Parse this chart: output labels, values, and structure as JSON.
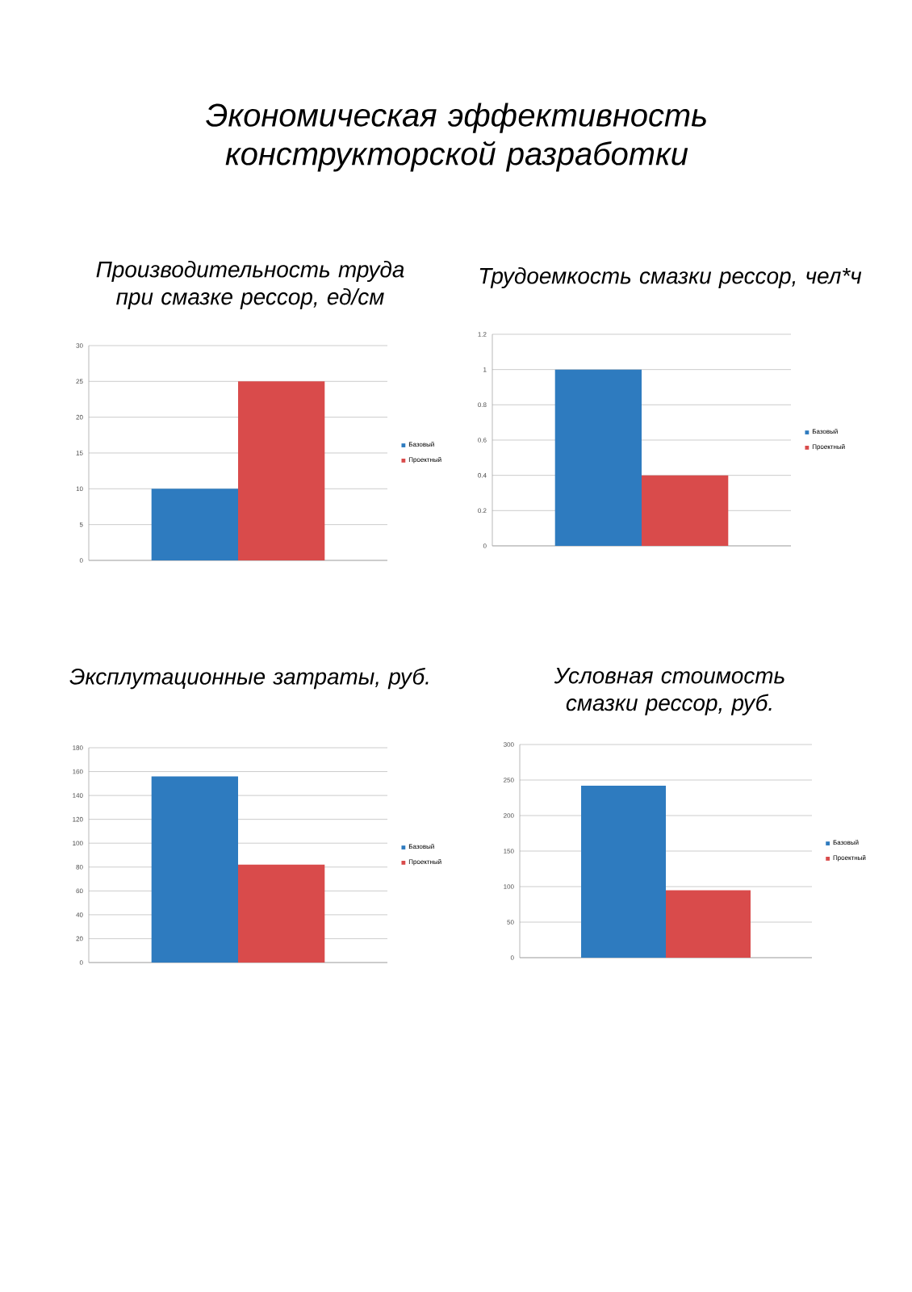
{
  "chart_data": [
    {
      "type": "other",
      "title": "Экономическая эффективность конструкторской разработки"
    },
    {
      "type": "bar",
      "title": "Производительность труда при смазке рессор, ед/см",
      "categories": [
        null
      ],
      "series": [
        {
          "name": "Базовый",
          "color": "#2e7bbf",
          "values": [
            10
          ]
        },
        {
          "name": "Проектный",
          "color": "#d94b4b",
          "values": [
            25
          ]
        }
      ],
      "ylim": [
        0,
        30
      ],
      "yticks": [
        0,
        5,
        10,
        15,
        20,
        25,
        30
      ],
      "grid": "y",
      "legend": "right"
    },
    {
      "type": "bar",
      "title": "Трудоемкость смазки рессор, чел*ч",
      "categories": [
        null
      ],
      "series": [
        {
          "name": "Базовый",
          "color": "#2e7bbf",
          "values": [
            1
          ]
        },
        {
          "name": "Проектный",
          "color": "#d94b4b",
          "values": [
            0.4
          ]
        }
      ],
      "ylim": [
        0,
        1.2
      ],
      "yticks": [
        0,
        0.2,
        0.4,
        0.6,
        0.8,
        1,
        1.2
      ],
      "grid": "y",
      "legend": "right"
    },
    {
      "type": "bar",
      "title": "Эксплутационные затраты, руб.",
      "categories": [
        null
      ],
      "series": [
        {
          "name": "Базовый",
          "color": "#2e7bbf",
          "values": [
            156
          ]
        },
        {
          "name": "Проектный",
          "color": "#d94b4b",
          "values": [
            82
          ]
        }
      ],
      "ylim": [
        0,
        180
      ],
      "yticks": [
        0,
        20,
        40,
        60,
        80,
        100,
        120,
        140,
        160,
        180
      ],
      "grid": "y",
      "legend": "right"
    },
    {
      "type": "bar",
      "title": "Условная стоимость смазки рессор, руб.",
      "categories": [
        null
      ],
      "series": [
        {
          "name": "Базовый",
          "color": "#2e7bbf",
          "values": [
            242
          ]
        },
        {
          "name": "Проектный",
          "color": "#d94b4b",
          "values": [
            95
          ]
        }
      ],
      "ylim": [
        0,
        300
      ],
      "yticks": [
        0,
        50,
        100,
        150,
        200,
        250,
        300
      ],
      "grid": "y",
      "legend": "right"
    }
  ]
}
